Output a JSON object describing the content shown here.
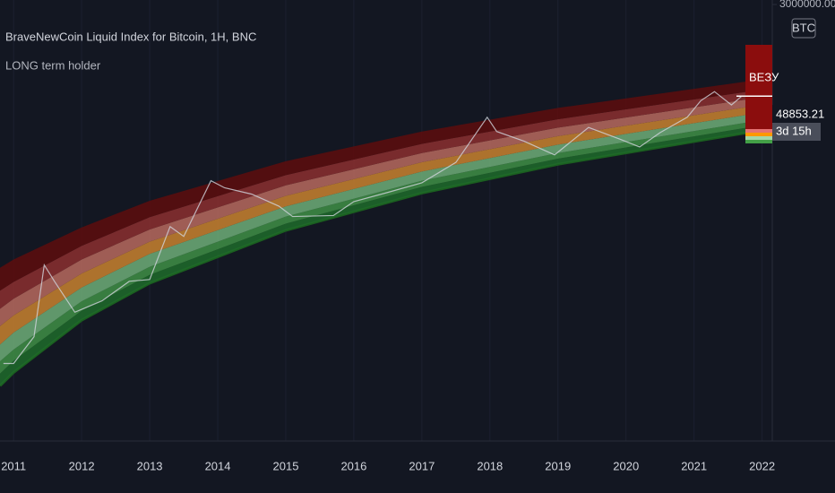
{
  "chart_data": {
    "type": "area",
    "title": "BraveNewCoin Liquid Index for Bitcoin, 1H, BNC",
    "subtitle": "LONG term holder",
    "symbol": "BTC",
    "signal_label": "BEЗУ",
    "last_price": 48853.21,
    "countdown": "3d 15h",
    "log_y": true,
    "grid": true,
    "xlim": [
      2010.8,
      2022.15
    ],
    "xticks": [
      2011,
      2012,
      2013,
      2014,
      2015,
      2016,
      2017,
      2018,
      2019,
      2020,
      2021,
      2022
    ],
    "ylim": [
      0.01,
      3000000
    ],
    "yticks": [
      {
        "value": 3000000,
        "label": "3000000.00"
      }
    ],
    "x": [
      2010.8,
      2011,
      2012,
      2013,
      2015,
      2017,
      2019,
      2021.8
    ],
    "series": [
      {
        "color": "#1b5e20",
        "values": [
          0.11,
          0.2,
          2.1,
          11,
          118,
          630,
          2300,
          9600
        ]
      },
      {
        "color": "#1f6b2a",
        "values": [
          0.19,
          0.34,
          3.2,
          16,
          160,
          832,
          2951,
          12023
        ]
      },
      {
        "color": "#3f8f45",
        "values": [
          0.33,
          0.56,
          4.9,
          23,
          219,
          1096,
          3802,
          15136
        ]
      },
      {
        "color": "#6fae78",
        "values": [
          0.7,
          1.2,
          9.1,
          41,
          347,
          1660,
          5559,
          21380
        ]
      },
      {
        "color": "#c9822f",
        "values": [
          1.6,
          2.6,
          17,
          71,
          556,
          2512,
          8128,
          30200
        ]
      },
      {
        "color": "#b86a5e",
        "values": [
          3.5,
          5.5,
          32,
          123,
          891,
          3802,
          11885,
          42660
        ]
      },
      {
        "color": "#8c2f2f",
        "values": [
          7.9,
          11.7,
          59,
          214,
          1413,
          5754,
          17378,
          60256
        ]
      },
      {
        "color": "#5e0d0d",
        "values": [
          22,
          32,
          135,
          447,
          2630,
          10000,
          28840,
          95500
        ]
      }
    ],
    "price": {
      "color": "#d1d4dc",
      "x": [
        2010.85,
        2011.0,
        2011.3,
        2011.45,
        2011.6,
        2011.9,
        2012.3,
        2012.7,
        2013.0,
        2013.3,
        2013.5,
        2013.9,
        2014.1,
        2014.5,
        2014.9,
        2015.1,
        2015.7,
        2016.0,
        2016.5,
        2017.0,
        2017.5,
        2017.96,
        2018.1,
        2018.5,
        2018.95,
        2019.45,
        2019.9,
        2020.2,
        2020.5,
        2020.9,
        2021.1,
        2021.3,
        2021.55,
        2021.7
      ],
      "values": [
        0.3,
        0.3,
        1,
        25,
        12,
        3,
        5,
        12,
        13,
        140,
        90,
        1100,
        800,
        600,
        350,
        220,
        230,
        430,
        650,
        1000,
        2500,
        19000,
        10000,
        6500,
        3500,
        12000,
        7200,
        5000,
        9500,
        19000,
        40000,
        60000,
        33000,
        48853.21
      ]
    }
  }
}
